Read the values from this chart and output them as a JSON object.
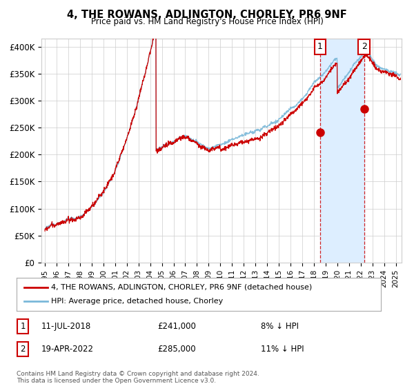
{
  "title": "4, THE ROWANS, ADLINGTON, CHORLEY, PR6 9NF",
  "subtitle": "Price paid vs. HM Land Registry's House Price Index (HPI)",
  "ylabel_ticks": [
    "£0",
    "£50K",
    "£100K",
    "£150K",
    "£200K",
    "£250K",
    "£300K",
    "£350K",
    "£400K"
  ],
  "ytick_values": [
    0,
    50000,
    100000,
    150000,
    200000,
    250000,
    300000,
    350000,
    400000
  ],
  "ylim": [
    0,
    415000
  ],
  "xlim_start": 1994.7,
  "xlim_end": 2025.5,
  "hpi_color": "#7ab8d9",
  "price_color": "#cc0000",
  "sale1_date": "11-JUL-2018",
  "sale1_price": "£241,000",
  "sale1_note": "8% ↓ HPI",
  "sale2_date": "19-APR-2022",
  "sale2_price": "£285,000",
  "sale2_note": "11% ↓ HPI",
  "sale1_x": 2018.53,
  "sale1_y": 241000,
  "sale2_x": 2022.3,
  "sale2_y": 285000,
  "legend_label_red": "4, THE ROWANS, ADLINGTON, CHORLEY, PR6 9NF (detached house)",
  "legend_label_blue": "HPI: Average price, detached house, Chorley",
  "footer": "Contains HM Land Registry data © Crown copyright and database right 2024.\nThis data is licensed under the Open Government Licence v3.0.",
  "background_color": "#ffffff",
  "grid_color": "#cccccc",
  "span_color": "#ddeeff"
}
